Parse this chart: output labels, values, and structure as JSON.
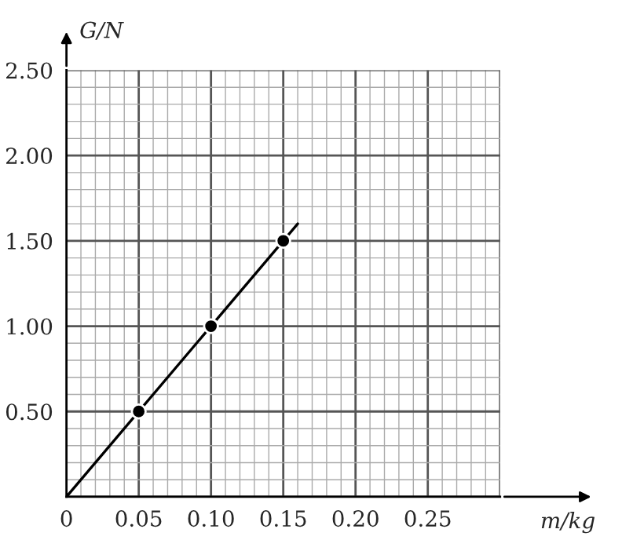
{
  "chart_data": {
    "type": "scatter",
    "xlabel": "m/kg",
    "ylabel": "G/N",
    "xlim": [
      0,
      0.3
    ],
    "ylim": [
      0,
      2.5
    ],
    "xticks": [
      {
        "value": 0,
        "label": "0"
      },
      {
        "value": 0.05,
        "label": "0.05"
      },
      {
        "value": 0.1,
        "label": "0.10"
      },
      {
        "value": 0.15,
        "label": "0.15"
      },
      {
        "value": 0.2,
        "label": "0.20"
      },
      {
        "value": 0.25,
        "label": "0.25"
      }
    ],
    "yticks": [
      {
        "value": 0.5,
        "label": "0.50"
      },
      {
        "value": 1.0,
        "label": "1.00"
      },
      {
        "value": 1.5,
        "label": "1.50"
      },
      {
        "value": 2.0,
        "label": "2.00"
      },
      {
        "value": 2.5,
        "label": "2.50"
      }
    ],
    "grid": true,
    "series": [
      {
        "type": "line",
        "color": "#000000",
        "x": [
          0,
          0.16
        ],
        "values": [
          0,
          1.6
        ],
        "marker": "none"
      },
      {
        "color": "#000000",
        "x": [
          0.05,
          0.1,
          0.15
        ],
        "values": [
          0.5,
          1.0,
          1.5
        ],
        "marker": "circle"
      }
    ]
  }
}
